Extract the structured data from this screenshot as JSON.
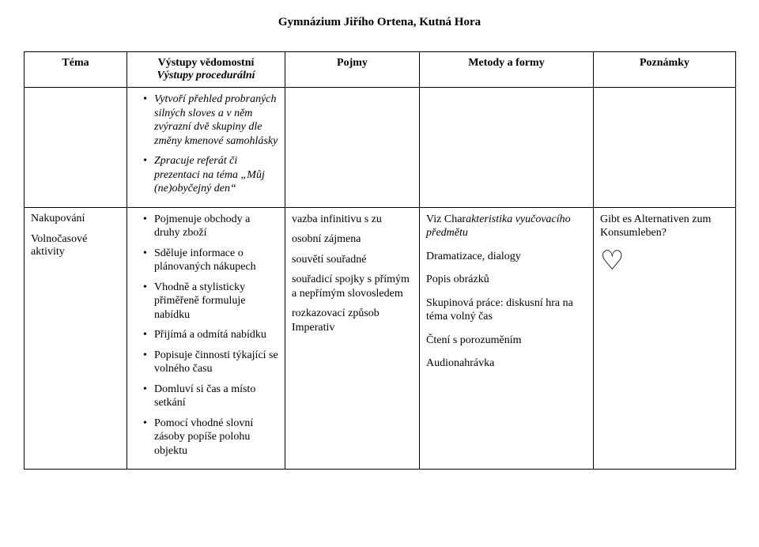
{
  "header": {
    "title": "Gymnázium Jiřího Ortena, Kutná Hora"
  },
  "table": {
    "columns": [
      "Téma",
      "Výstupy vědomostní\nVýstupy procedurální",
      "Pojmy",
      "Metody a formy",
      "Poznámky"
    ],
    "col2_header_line1": "Výstupy vědomostní",
    "col2_header_line2": "Výstupy procedurální",
    "row1": {
      "c2_items": [
        "Vytvoří přehled probraných silných sloves a v něm zvýrazní dvě skupiny dle změny kmenové samohlásky",
        "Zpracuje referát či prezentaci na téma „Můj (ne)obyčejný den“"
      ]
    },
    "row2": {
      "c1_lines": [
        "Nakupování",
        "Volnočasové aktivity"
      ],
      "c2_items": [
        "Pojmenuje obchody a druhy zboží",
        "Sděluje informace o plánovaných nákupech",
        "Vhodně a stylisticky přiměřeně formuluje nabídku",
        "Přijímá a odmítá nabídku",
        "Popisuje činnosti týkající se volného času",
        "Domluví si čas a místo setkání",
        "Pomocí vhodné slovní zásoby popíše polohu objektu"
      ],
      "c3_lines": [
        "vazba infinitivu s zu",
        "osobní zájmena",
        "souvětí souřadné",
        "souřadicí spojky s přímým a nepřímým slovosledem",
        "rozkazovací způsob Imperativ"
      ],
      "c4_lines": [
        "Viz Charakteristika vyučovacího předmětu",
        "Dramatizace, dialogy",
        "Popis obrázků",
        "Skupinová práce: diskusní hra na téma volný čas",
        "Čtení s porozuměním",
        "Audionahrávka"
      ],
      "c4_italic_first": true,
      "c5_lines": [
        "Gibt es Alternativen zum Konsumleben?"
      ],
      "c5_symbol": "♡"
    }
  }
}
